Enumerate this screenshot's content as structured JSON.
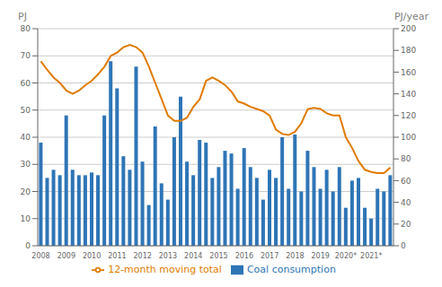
{
  "chart_data": {
    "type": "bar",
    "categories": [
      "2008",
      null,
      null,
      null,
      "2009",
      null,
      null,
      null,
      "2010",
      null,
      null,
      null,
      "2011",
      null,
      null,
      null,
      "2012",
      null,
      null,
      null,
      "2013",
      null,
      null,
      null,
      "2014",
      null,
      null,
      null,
      "2015",
      null,
      null,
      null,
      "2016",
      null,
      null,
      null,
      "2017",
      null,
      null,
      null,
      "2018",
      null,
      null,
      null,
      "2019",
      null,
      null,
      null,
      "2020*",
      null,
      null,
      null,
      "2021*",
      null,
      null,
      null
    ],
    "series": [
      {
        "name": "Coal consumption",
        "type": "bar",
        "color": "#2e75b6",
        "values": [
          38,
          25,
          28,
          26,
          48,
          28,
          26,
          26,
          27,
          26,
          48,
          68,
          58,
          33,
          28,
          66,
          31,
          15,
          44,
          23,
          17,
          40,
          55,
          31,
          26,
          39,
          38,
          25,
          29,
          35,
          34,
          21,
          36,
          29,
          25,
          17,
          28,
          25,
          40,
          21,
          41,
          20,
          35,
          29,
          21,
          28,
          20,
          29,
          14,
          24,
          25,
          14,
          10,
          21,
          20,
          26
        ]
      },
      {
        "name": "12-month moving total",
        "type": "line",
        "axis": "y2",
        "color": "#e07b00",
        "values": [
          170,
          162,
          155,
          150,
          143,
          140,
          143,
          148,
          152,
          158,
          165,
          175,
          178,
          183,
          185,
          183,
          178,
          165,
          150,
          135,
          120,
          115,
          115,
          118,
          128,
          135,
          152,
          155,
          152,
          148,
          142,
          133,
          131,
          128,
          126,
          124,
          120,
          107,
          103,
          102,
          105,
          113,
          126,
          127,
          126,
          122,
          120,
          120,
          100,
          90,
          78,
          70,
          68,
          67,
          67,
          72
        ]
      }
    ],
    "ylabel": "PJ",
    "y2label": "PJ/year",
    "ylim": [
      0,
      80
    ],
    "yticks": [
      0,
      10,
      20,
      30,
      40,
      50,
      60,
      70,
      80
    ],
    "y2lim": [
      0,
      200
    ],
    "y2ticks": [
      0,
      20,
      40,
      60,
      80,
      100,
      120,
      140,
      160,
      180,
      200
    ],
    "grid": true,
    "legend": "bottom"
  }
}
